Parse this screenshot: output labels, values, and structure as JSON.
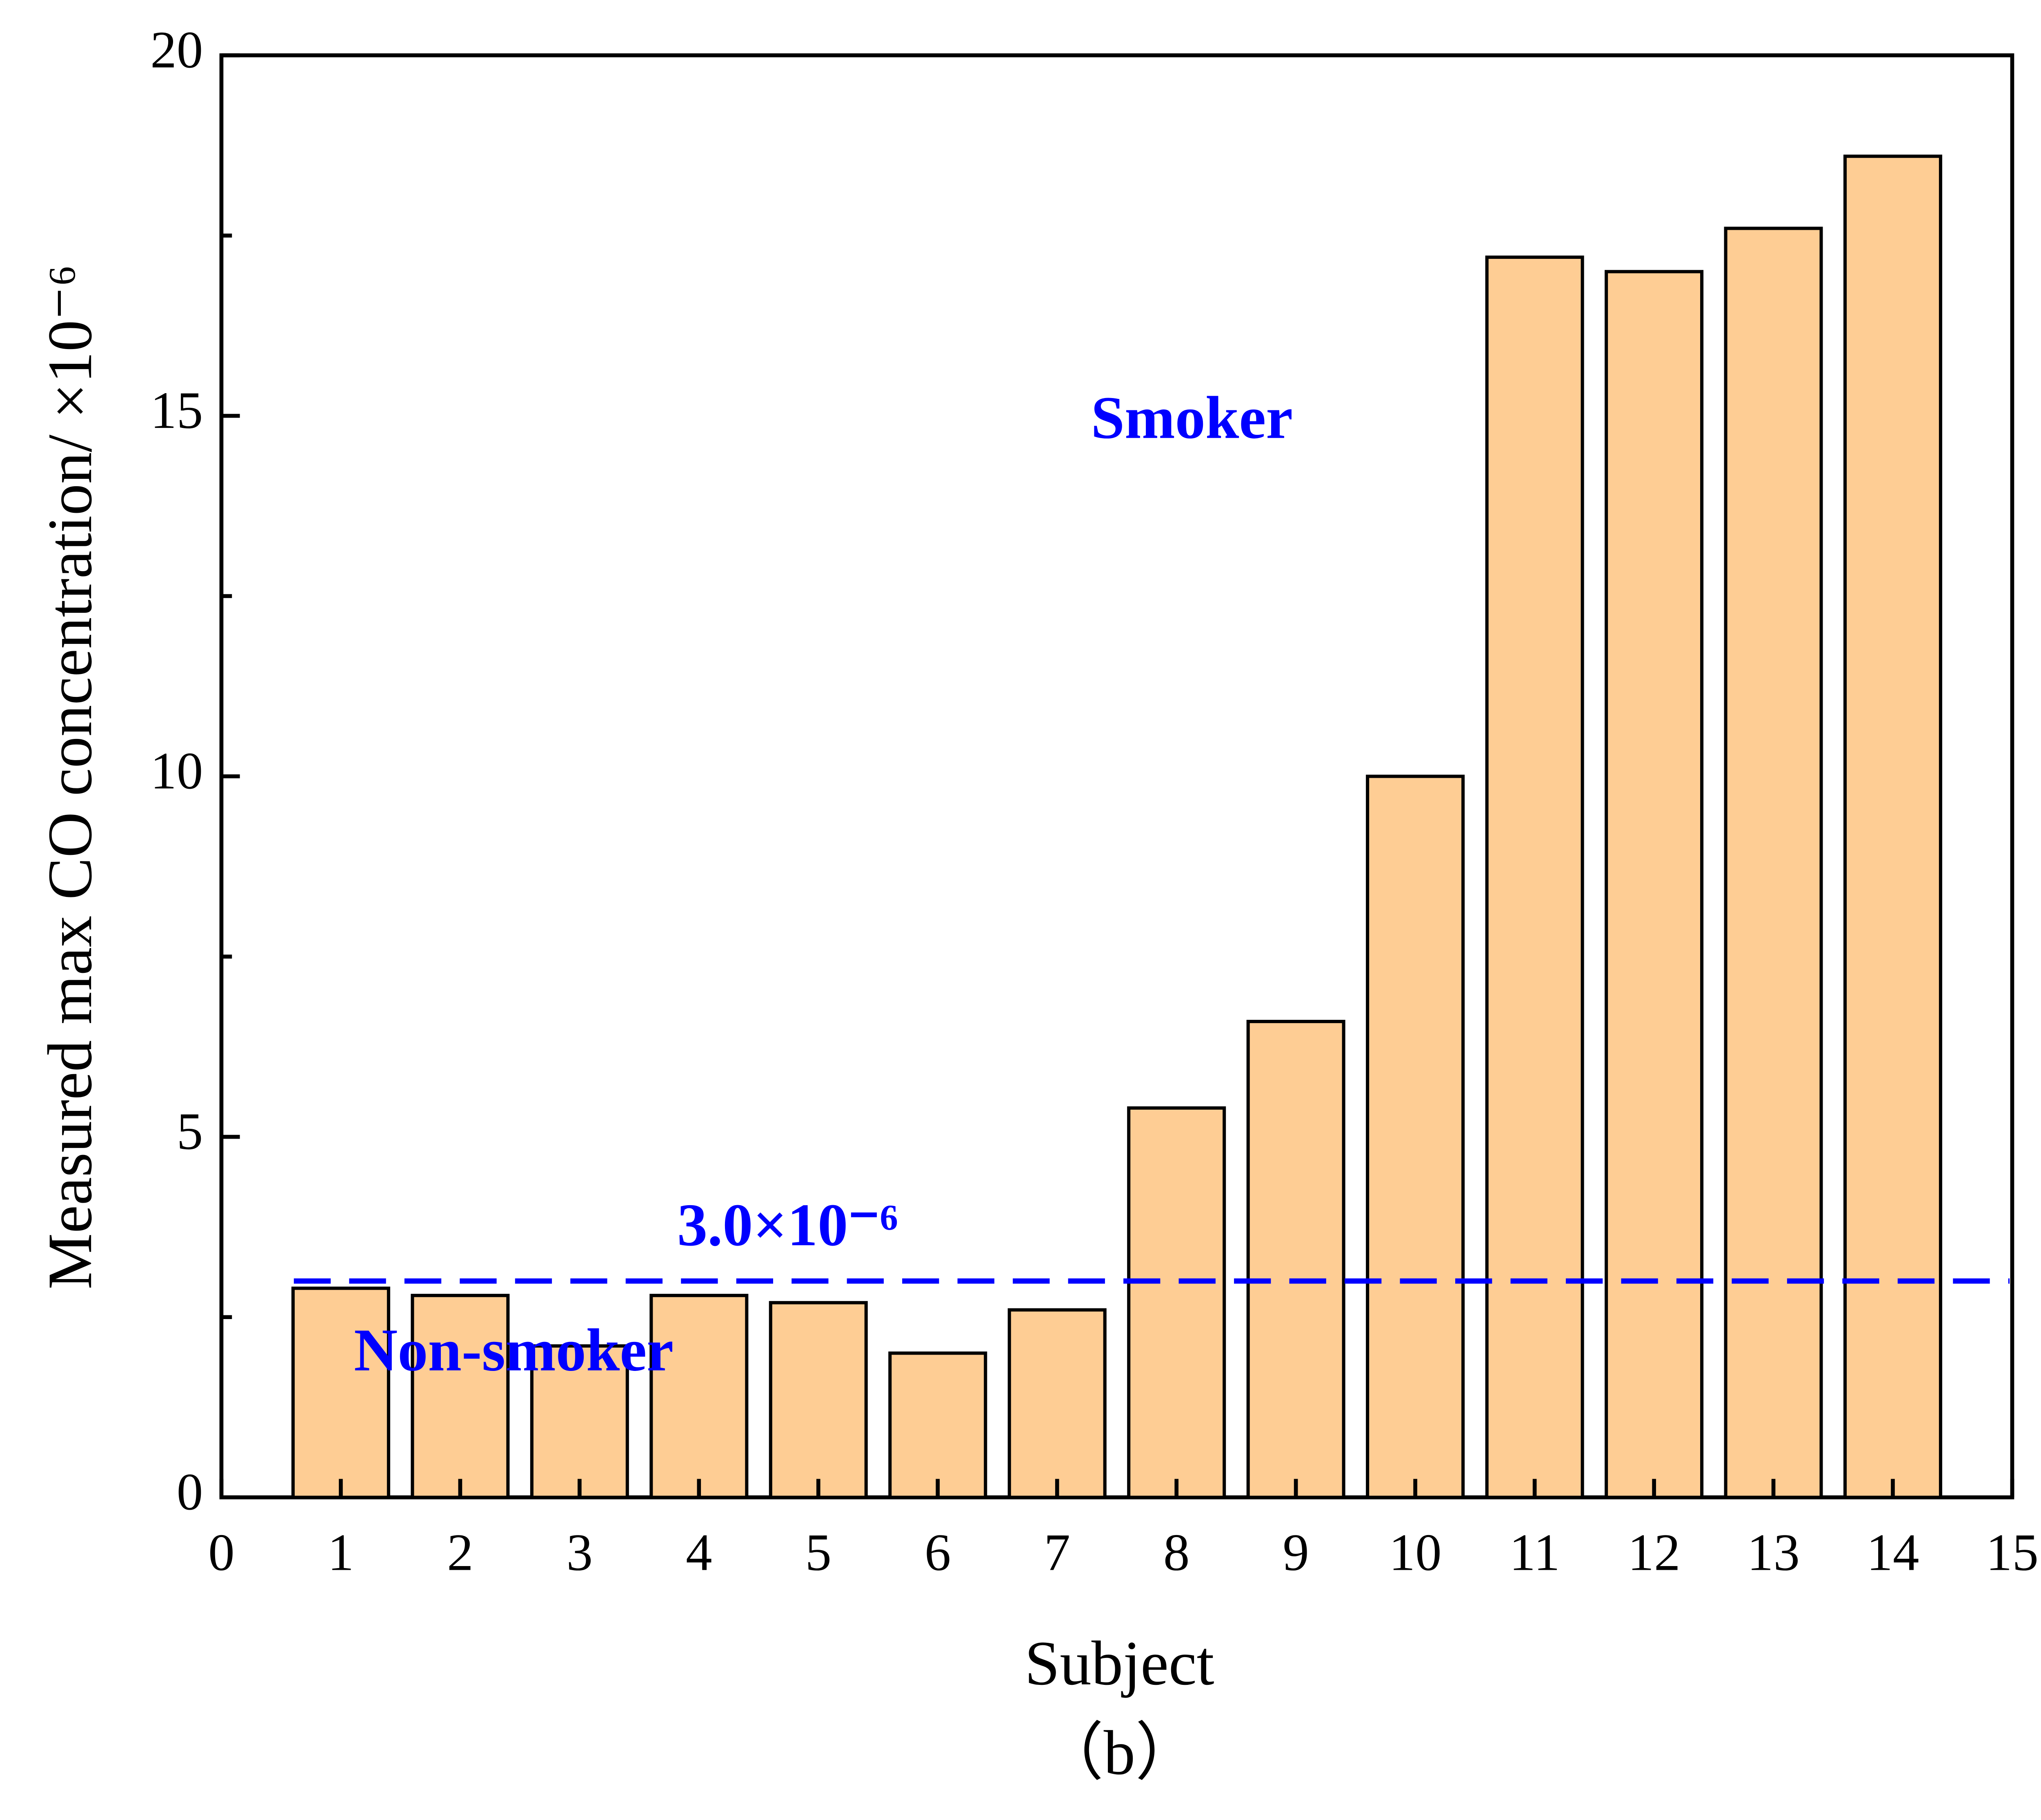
{
  "chart_data": {
    "type": "bar",
    "x": [
      1,
      2,
      3,
      4,
      5,
      6,
      7,
      8,
      9,
      10,
      11,
      12,
      13,
      14
    ],
    "values": [
      2.9,
      2.8,
      2.1,
      2.8,
      2.7,
      2.0,
      2.6,
      5.4,
      6.6,
      10.0,
      17.2,
      17.0,
      17.6,
      18.6
    ],
    "color": "#fecd94",
    "xlim": [
      0,
      15
    ],
    "xticks": [
      0,
      1,
      2,
      3,
      4,
      5,
      6,
      7,
      8,
      9,
      10,
      11,
      12,
      13,
      14,
      15
    ],
    "ylim": [
      0,
      20
    ],
    "yticks": [
      0,
      5,
      10,
      15,
      20
    ],
    "yminorticks": [
      2.5,
      7.5,
      12.5,
      17.5
    ],
    "x_label": "Subject",
    "y_label": "Measured max CO concentration/ ×10⁻⁶",
    "caption": "（b）",
    "reference_line": {
      "value": 3.0,
      "label": "3.0×10⁻⁶",
      "color": "#0000ff"
    },
    "annotations": [
      {
        "text": "Smoker",
        "color": "#0000ff"
      },
      {
        "text": "Non-smoker",
        "color": "#0000ff"
      }
    ]
  }
}
